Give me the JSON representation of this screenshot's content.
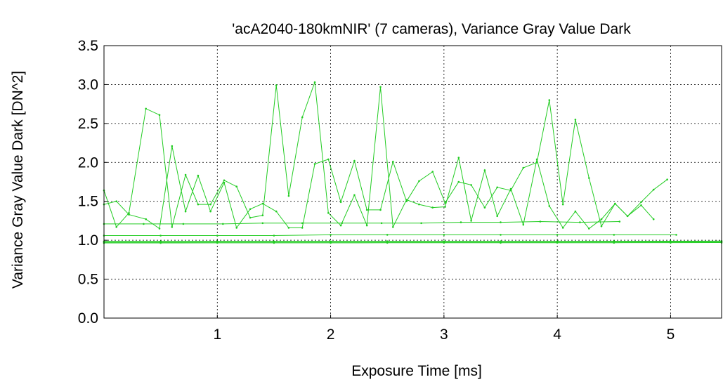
{
  "chart_data": {
    "type": "line",
    "title": "'acA2040-180kmNIR' (7 cameras), Variance Gray Value Dark",
    "xlabel": "Exposure Time [ms]",
    "ylabel": "Variance Gray Value Dark [DN^2]",
    "xlim": [
      0,
      5.45
    ],
    "ylim": [
      0,
      3.5
    ],
    "xticks": [
      1,
      2,
      3,
      4,
      5
    ],
    "xtick_labels": [
      "1",
      "2",
      "3",
      "4",
      "5"
    ],
    "yticks": [
      0,
      0.5,
      1,
      1.5,
      2,
      2.5,
      3,
      3.5
    ],
    "ytick_labels": [
      "0.0",
      "0.5",
      "1.0",
      "1.5",
      "2.0",
      "2.5",
      "3.0",
      "3.5"
    ],
    "grid": true,
    "line_color": "#22cc22",
    "series": [
      {
        "x": [
          0.0,
          0.11,
          0.22,
          0.37,
          0.49,
          0.6,
          0.72,
          0.83,
          0.94,
          1.06,
          1.17,
          1.29,
          1.4,
          1.52,
          1.63,
          1.75,
          1.86,
          1.98,
          2.09,
          2.21,
          2.32,
          2.44,
          2.55,
          2.67,
          2.78,
          2.9,
          3.01,
          3.13,
          3.24,
          3.36,
          3.47,
          3.59,
          3.7,
          3.82,
          3.93,
          4.05,
          4.16,
          4.28,
          4.39,
          4.51,
          4.62,
          4.74,
          4.85,
          4.97
        ],
        "y": [
          1.64,
          1.17,
          1.35,
          2.69,
          2.61,
          1.17,
          1.84,
          1.46,
          1.46,
          1.77,
          1.69,
          1.29,
          1.32,
          2.99,
          1.57,
          2.58,
          3.03,
          1.35,
          1.19,
          1.58,
          1.19,
          2.97,
          1.17,
          1.52,
          1.46,
          1.42,
          1.43,
          2.06,
          1.25,
          1.9,
          1.31,
          1.66,
          1.2,
          2.04,
          1.44,
          1.16,
          1.37,
          1.15,
          1.27,
          1.47,
          1.31,
          1.49,
          1.65,
          1.78
        ]
      },
      {
        "x": [
          0.0,
          0.11,
          0.22,
          0.37,
          0.49,
          0.6,
          0.72,
          0.83,
          0.94,
          1.06,
          1.17,
          1.29,
          1.4,
          1.52,
          1.63,
          1.75,
          1.86,
          1.98,
          2.09,
          2.21,
          2.32,
          2.44,
          2.55,
          2.67,
          2.78,
          2.9,
          3.01,
          3.13,
          3.24,
          3.36,
          3.47,
          3.59,
          3.7,
          3.82,
          3.93,
          4.05,
          4.16,
          4.28,
          4.39,
          4.51,
          4.62,
          4.74,
          4.85
        ],
        "y": [
          1.46,
          1.5,
          1.33,
          1.27,
          1.15,
          2.21,
          1.37,
          1.83,
          1.37,
          1.74,
          1.16,
          1.4,
          1.47,
          1.37,
          1.16,
          1.16,
          1.98,
          2.04,
          1.49,
          2.02,
          1.39,
          1.39,
          2.01,
          1.5,
          1.76,
          1.88,
          1.48,
          1.75,
          1.71,
          1.42,
          1.68,
          1.64,
          1.93,
          2.0,
          2.8,
          1.46,
          2.55,
          1.8,
          1.18,
          1.47,
          1.31,
          1.45,
          1.27
        ]
      },
      {
        "x": [
          0.0,
          0.35,
          0.7,
          1.05,
          1.4,
          1.75,
          2.1,
          2.45,
          2.8,
          3.15,
          3.5,
          3.85,
          4.2,
          4.55
        ],
        "y": [
          1.21,
          1.21,
          1.21,
          1.21,
          1.22,
          1.22,
          1.22,
          1.22,
          1.22,
          1.23,
          1.23,
          1.24,
          1.23,
          1.24
        ]
      },
      {
        "x": [
          0.0,
          0.5,
          1.0,
          1.5,
          2.0,
          2.5,
          3.0,
          3.5,
          4.0,
          4.5,
          5.05
        ],
        "y": [
          1.06,
          1.06,
          1.06,
          1.06,
          1.07,
          1.07,
          1.07,
          1.07,
          1.07,
          1.07,
          1.07
        ]
      },
      {
        "x": [
          0.0,
          0.5,
          1.0,
          1.5,
          2.0,
          2.5,
          3.0,
          3.5,
          4.0,
          4.5,
          5.0,
          5.45
        ],
        "y": [
          0.985,
          0.985,
          0.985,
          0.985,
          0.985,
          0.986,
          0.986,
          0.986,
          0.986,
          0.987,
          0.988,
          0.99
        ]
      },
      {
        "x": [
          0.0,
          0.5,
          1.0,
          1.5,
          2.0,
          2.5,
          3.0,
          3.5,
          4.0,
          4.5,
          5.0,
          5.45
        ],
        "y": [
          0.975,
          0.975,
          0.976,
          0.976,
          0.976,
          0.976,
          0.977,
          0.977,
          0.977,
          0.978,
          0.978,
          0.98
        ]
      },
      {
        "x": [
          0.0,
          0.5,
          1.0,
          1.5,
          2.0,
          2.5,
          3.0,
          3.5,
          4.0,
          4.5,
          5.0,
          5.45
        ],
        "y": [
          0.965,
          0.965,
          0.966,
          0.966,
          0.966,
          0.967,
          0.967,
          0.967,
          0.968,
          0.968,
          0.969,
          0.97
        ]
      }
    ]
  }
}
